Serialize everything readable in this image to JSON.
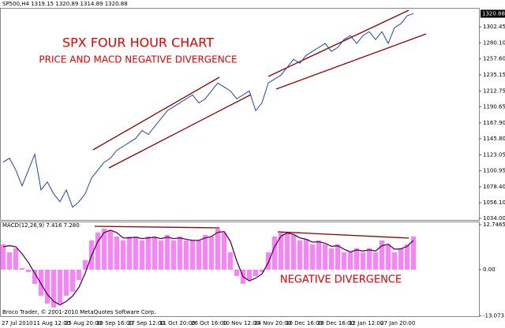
{
  "chart_data": [
    {
      "type": "line",
      "title": "SP500,H4 1319.15 1320.89 1314.89 1320.88",
      "annotations": [
        "SPX FOUR HOUR CHART",
        "PRICE AND MACD NEGATIVE DIVERGENCE"
      ],
      "categories": [
        "27 Jul 2010",
        null,
        null,
        null,
        null,
        "11 Aug 12:00",
        null,
        null,
        null,
        null,
        "25 Aug 20:00",
        null,
        null,
        null,
        null,
        "10 Sep 16:00",
        null,
        null,
        null,
        null,
        "27 Sep 12:00",
        null,
        null,
        null,
        null,
        "11 Oct 20:00",
        null,
        null,
        null,
        null,
        "26 Oct 16:00",
        null,
        null,
        null,
        null,
        "10 Nov 12:00",
        null,
        null,
        null,
        null,
        "24 Nov 20:00",
        null,
        null,
        null,
        null,
        "10 Dec 16:00",
        null,
        null,
        null,
        null,
        "28 Dec 16:00",
        null,
        null,
        null,
        null,
        "12 Jan 12:00",
        null,
        null,
        null,
        null,
        "27 Jan 20:00",
        null,
        null,
        null,
        null,
        null
      ],
      "values": [
        1112.8,
        1118.4,
        1101.8,
        1079.6,
        1101.8,
        1123.9,
        1074.0,
        1085.1,
        1068.5,
        1057.4,
        1074.0,
        1049.6,
        1057.4,
        1068.5,
        1090.7,
        1101.8,
        1112.8,
        1118.4,
        1129.5,
        1135.0,
        1140.6,
        1146.1,
        1157.2,
        1151.7,
        1162.8,
        1173.9,
        1185.0,
        1190.5,
        1196.0,
        1201.6,
        1207.1,
        1196.0,
        1201.6,
        1212.7,
        1223.8,
        1218.2,
        1212.7,
        1201.6,
        1207.1,
        1212.7,
        1185.0,
        1196.0,
        1223.8,
        1229.3,
        1234.8,
        1245.9,
        1257.0,
        1251.5,
        1262.6,
        1268.1,
        1273.7,
        1279.2,
        1268.1,
        1273.7,
        1284.7,
        1290.3,
        1279.2,
        1290.3,
        1295.8,
        1284.7,
        1295.8,
        1279.2,
        1301.4,
        1306.9,
        1318.0,
        1321.3
      ],
      "color": "#2244aa",
      "ylim": [
        1031.8,
        1329.1
      ],
      "yticks": [
        1302.45,
        {
          "value": 1280.1,
          "label": "1280.10"
        },
        {
          "value": 1257.6,
          "label": "1257.60"
        },
        1235.15,
        1212.75,
        1190.65,
        {
          "value": 1167.9,
          "label": "1167.90"
        },
        {
          "value": 1145.8,
          "label": "1145.80"
        },
        1123.05,
        1100.95,
        {
          "value": 1078.4,
          "label": "1078.40"
        },
        {
          "value": 1056.1,
          "label": "1056.10"
        },
        {
          "value": 1034,
          "label": "1034.00"
        }
      ],
      "price_marker": {
        "value": 1320.88,
        "label": "1320.88"
      }
    },
    {
      "type": "bar",
      "title": "MACD(12,26,9) 7.416 7.280",
      "annotation": "NEGATIVE DIVERGENCE",
      "footer": "Broco Trader, © 2001-2010 MetaQuotes Software Corp.",
      "values": [
        7.16,
        4.92,
        6.04,
        0.45,
        -0.67,
        -4.02,
        -7.38,
        -9.62,
        -10.73,
        -9.62,
        -7.38,
        -6.26,
        -2.91,
        2.68,
        8.27,
        10.51,
        11.63,
        11.18,
        9.39,
        8.27,
        9.39,
        9.39,
        8.27,
        9.39,
        9.39,
        8.27,
        9.84,
        8.27,
        9.39,
        8.27,
        8.27,
        8.27,
        9.84,
        9.39,
        11.63,
        10.51,
        4.92,
        -1.79,
        -4.02,
        -2.91,
        -1.79,
        -0.67,
        4.92,
        9.39,
        10.51,
        10.51,
        9.84,
        8.27,
        8.72,
        7.16,
        8.27,
        7.16,
        6.04,
        7.16,
        4.92,
        4.92,
        6.04,
        4.92,
        6.04,
        4.92,
        8.27,
        7.16,
        4.92,
        6.04,
        7.16,
        9.39
      ],
      "color": "#ff80ff",
      "line_values": [
        6.5,
        6.8,
        6.5,
        4.5,
        2.0,
        -1.0,
        -4.0,
        -7.0,
        -9.0,
        -10.0,
        -9.0,
        -7.5,
        -5.0,
        -1.0,
        4.0,
        8.0,
        10.5,
        11.2,
        10.5,
        9.0,
        9.0,
        9.2,
        8.8,
        9.0,
        9.2,
        8.8,
        9.2,
        8.8,
        9.0,
        8.6,
        8.3,
        8.3,
        9.0,
        9.4,
        10.6,
        10.8,
        8.0,
        2.5,
        -2.0,
        -3.2,
        -2.4,
        -1.2,
        2.0,
        6.5,
        9.5,
        10.4,
        10.0,
        9.0,
        8.6,
        7.8,
        7.9,
        7.5,
        6.6,
        6.8,
        5.8,
        5.0,
        5.6,
        5.3,
        5.6,
        5.3,
        6.8,
        7.2,
        5.8,
        5.9,
        6.6,
        8.3
      ],
      "line_color": "#5a005a",
      "ylim": [
        -13.19,
        13.19
      ],
      "yticks": [
        12.7465,
        {
          "value": 0,
          "label": "0.00"
        },
        -13.073
      ]
    }
  ]
}
